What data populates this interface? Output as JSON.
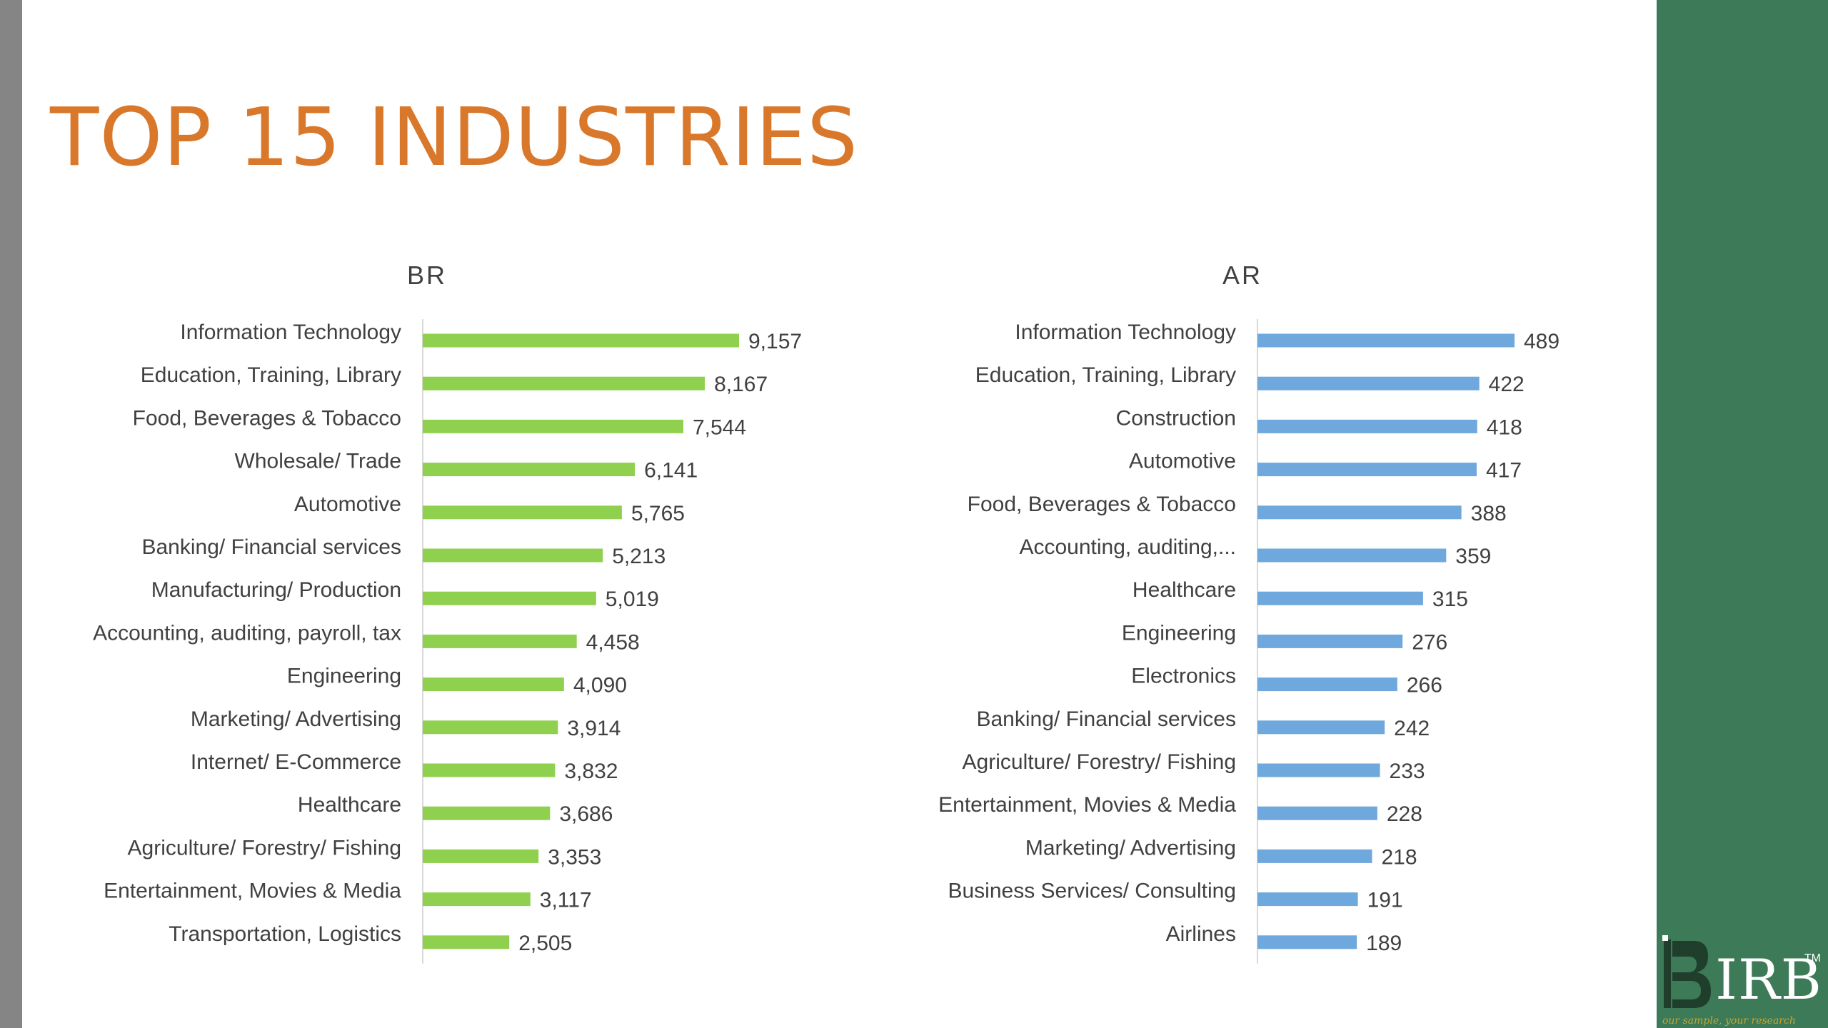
{
  "page": {
    "title": "TOP 15 INDUSTRIES",
    "accent_color": "#d9782a",
    "panel_color": "#3c7a58"
  },
  "logo": {
    "text": "IRB",
    "tm": "TM",
    "tagline": "our sample, your research"
  },
  "chart_data": [
    {
      "type": "bar",
      "orientation": "horizontal",
      "title": "BR",
      "color": "#8fd14f",
      "grid": false,
      "categories": [
        "Information  Technology",
        "Education,  Training,  Library",
        "Food, Beverages & Tobacco",
        "Wholesale/ Trade",
        "Automotive",
        "Banking/ Financial services",
        "Manufacturing/ Production",
        "Accounting, auditing, payroll, tax",
        "Engineering",
        "Marketing/ Advertising",
        "Internet/ E-Commerce",
        "Healthcare",
        "Agriculture/ Forestry/ Fishing",
        "Entertainment, Movies & Media",
        "Transportation, Logistics"
      ],
      "values": [
        9157,
        8167,
        7544,
        6141,
        5765,
        5213,
        5019,
        4458,
        4090,
        3914,
        3832,
        3686,
        3353,
        3117,
        2505
      ],
      "value_labels": [
        "9,157",
        "8,167",
        "7,544",
        "6,141",
        "5,765",
        "5,213",
        "5,019",
        "4,458",
        "4,090",
        "3,914",
        "3,832",
        "3,686",
        "3,353",
        "3,117",
        "2,505"
      ]
    },
    {
      "type": "bar",
      "orientation": "horizontal",
      "title": "AR",
      "color": "#6fa8dc",
      "grid": false,
      "categories": [
        "Information Technology",
        "Education, Training, Library",
        "Construction",
        "Automotive",
        "Food, Beverages & Tobacco",
        "Accounting, auditing,...",
        "Healthcare",
        "Engineering",
        "Electronics",
        "Banking/ Financial services",
        "Agriculture/ Forestry/ Fishing",
        "Entertainment, Movies & Media",
        "Marketing/ Advertising",
        "Business Services/ Consulting",
        "Airlines"
      ],
      "values": [
        489,
        422,
        418,
        417,
        388,
        359,
        315,
        276,
        266,
        242,
        233,
        228,
        218,
        191,
        189
      ],
      "value_labels": [
        "489",
        "422",
        "418",
        "417",
        "388",
        "359",
        "315",
        "276",
        "266",
        "242",
        "233",
        "228",
        "218",
        "191",
        "189"
      ]
    }
  ]
}
